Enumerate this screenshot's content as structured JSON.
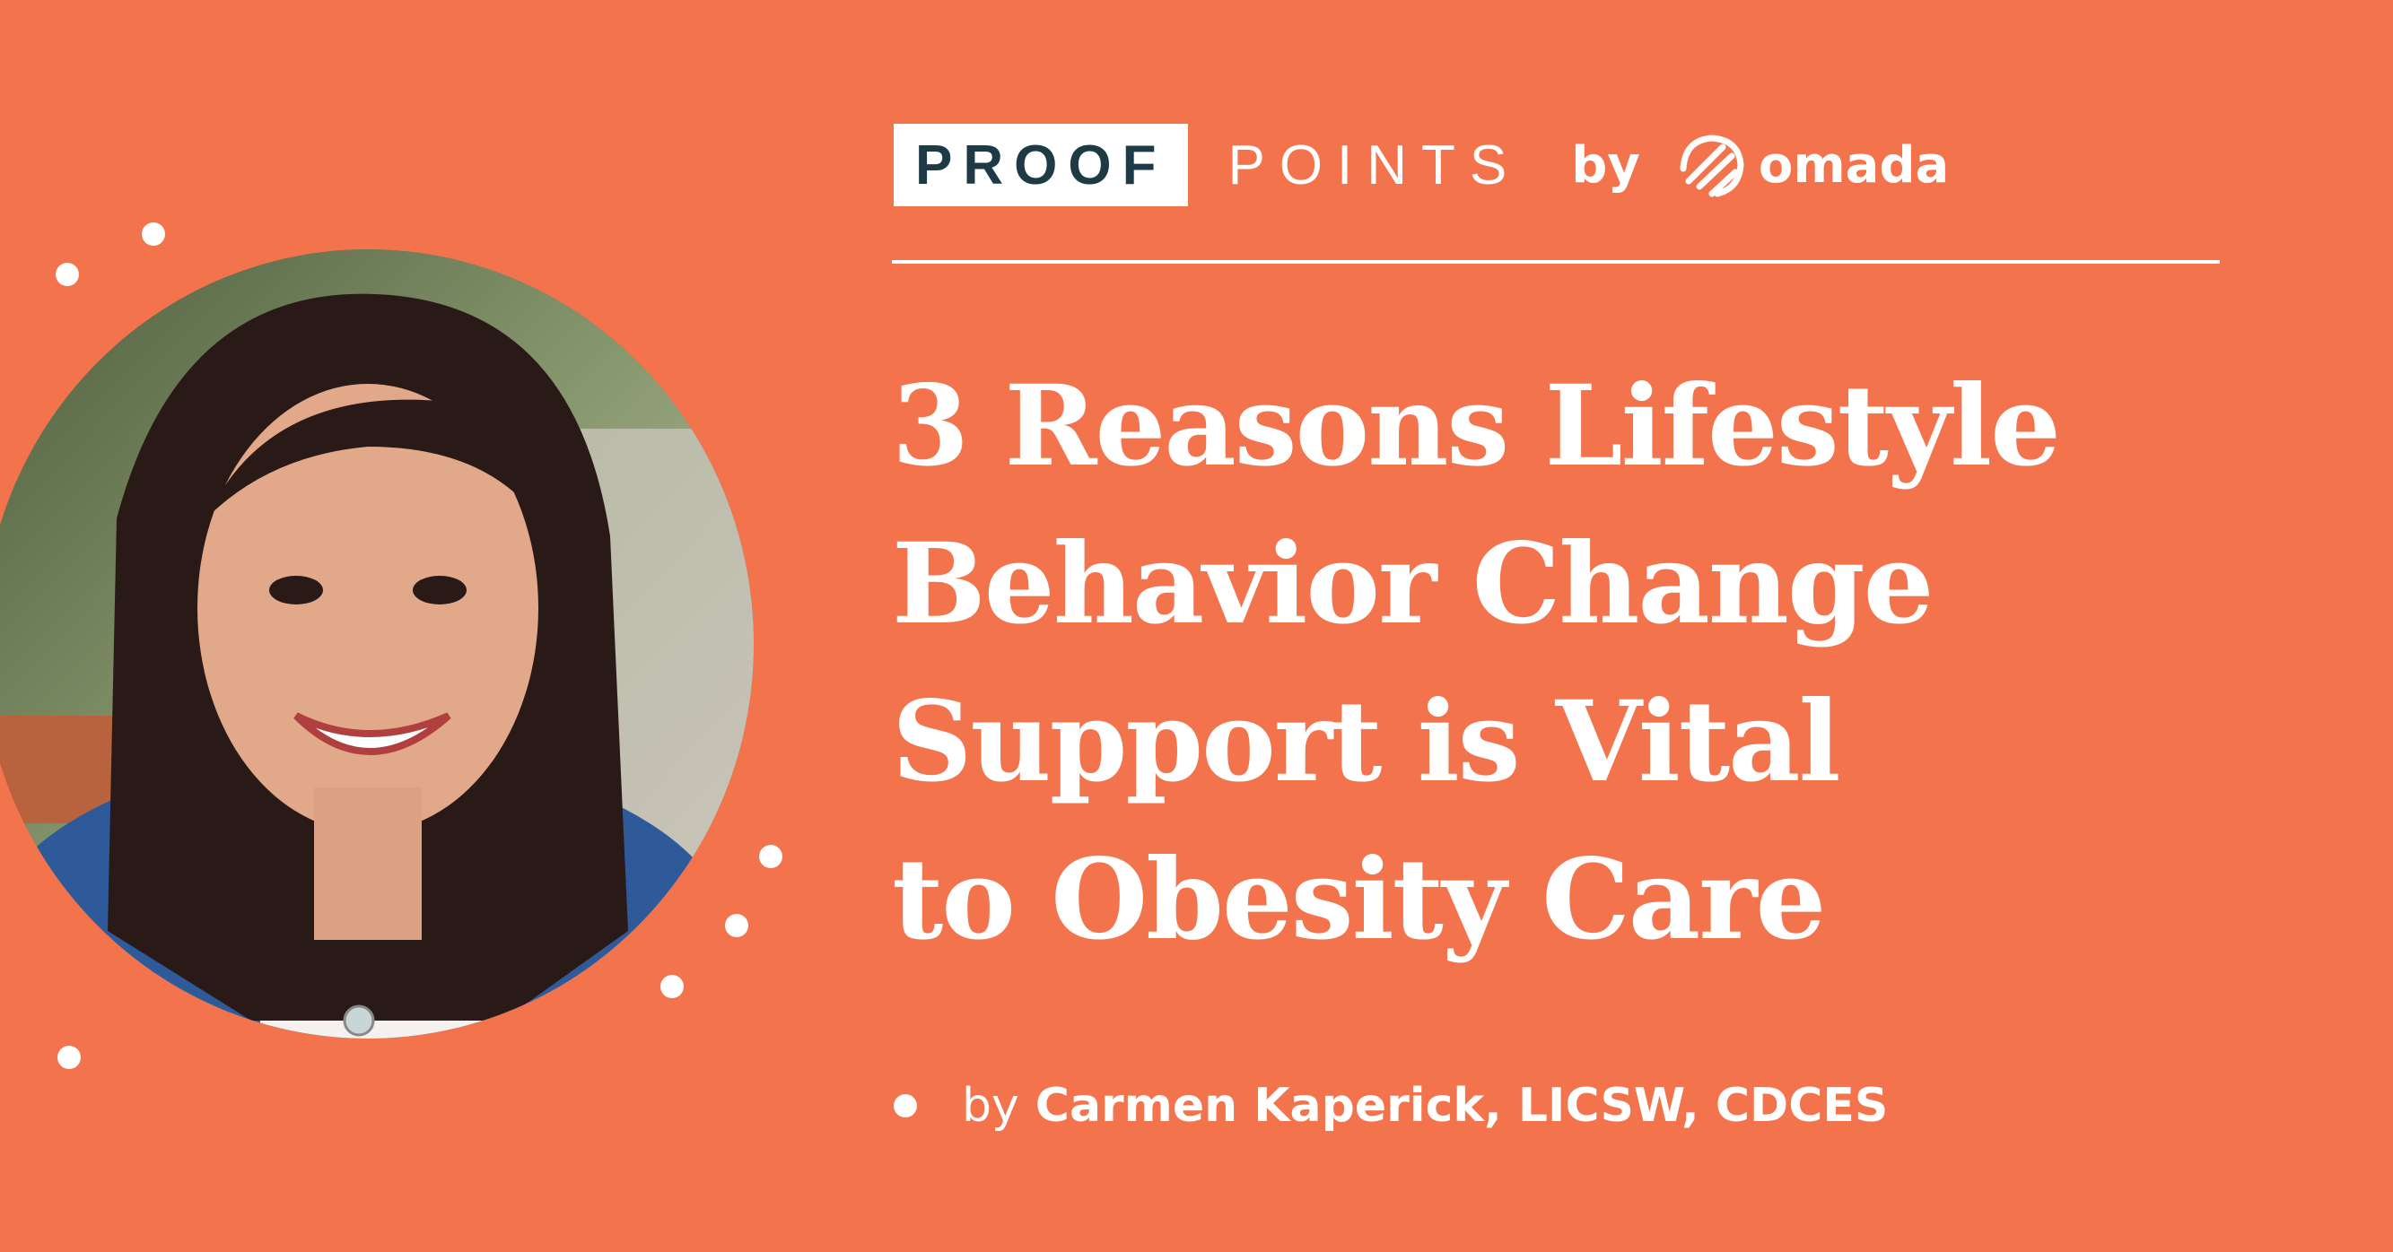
{
  "colors": {
    "background": "#F2734C",
    "proof_box_text": "#1E3A46",
    "text": "#FFFFFF"
  },
  "brand": {
    "proof": "PROOF",
    "points": "POINTS",
    "by": "by",
    "company": "omada",
    "company_icon": "omada-logo-icon"
  },
  "headline": {
    "lines": [
      "3 Reasons Lifestyle",
      "Behavior Change",
      "Support is Vital",
      "to Obesity Care"
    ]
  },
  "byline": {
    "by": "by",
    "author": "Carmen Kaperick, LICSW, CDCES"
  }
}
